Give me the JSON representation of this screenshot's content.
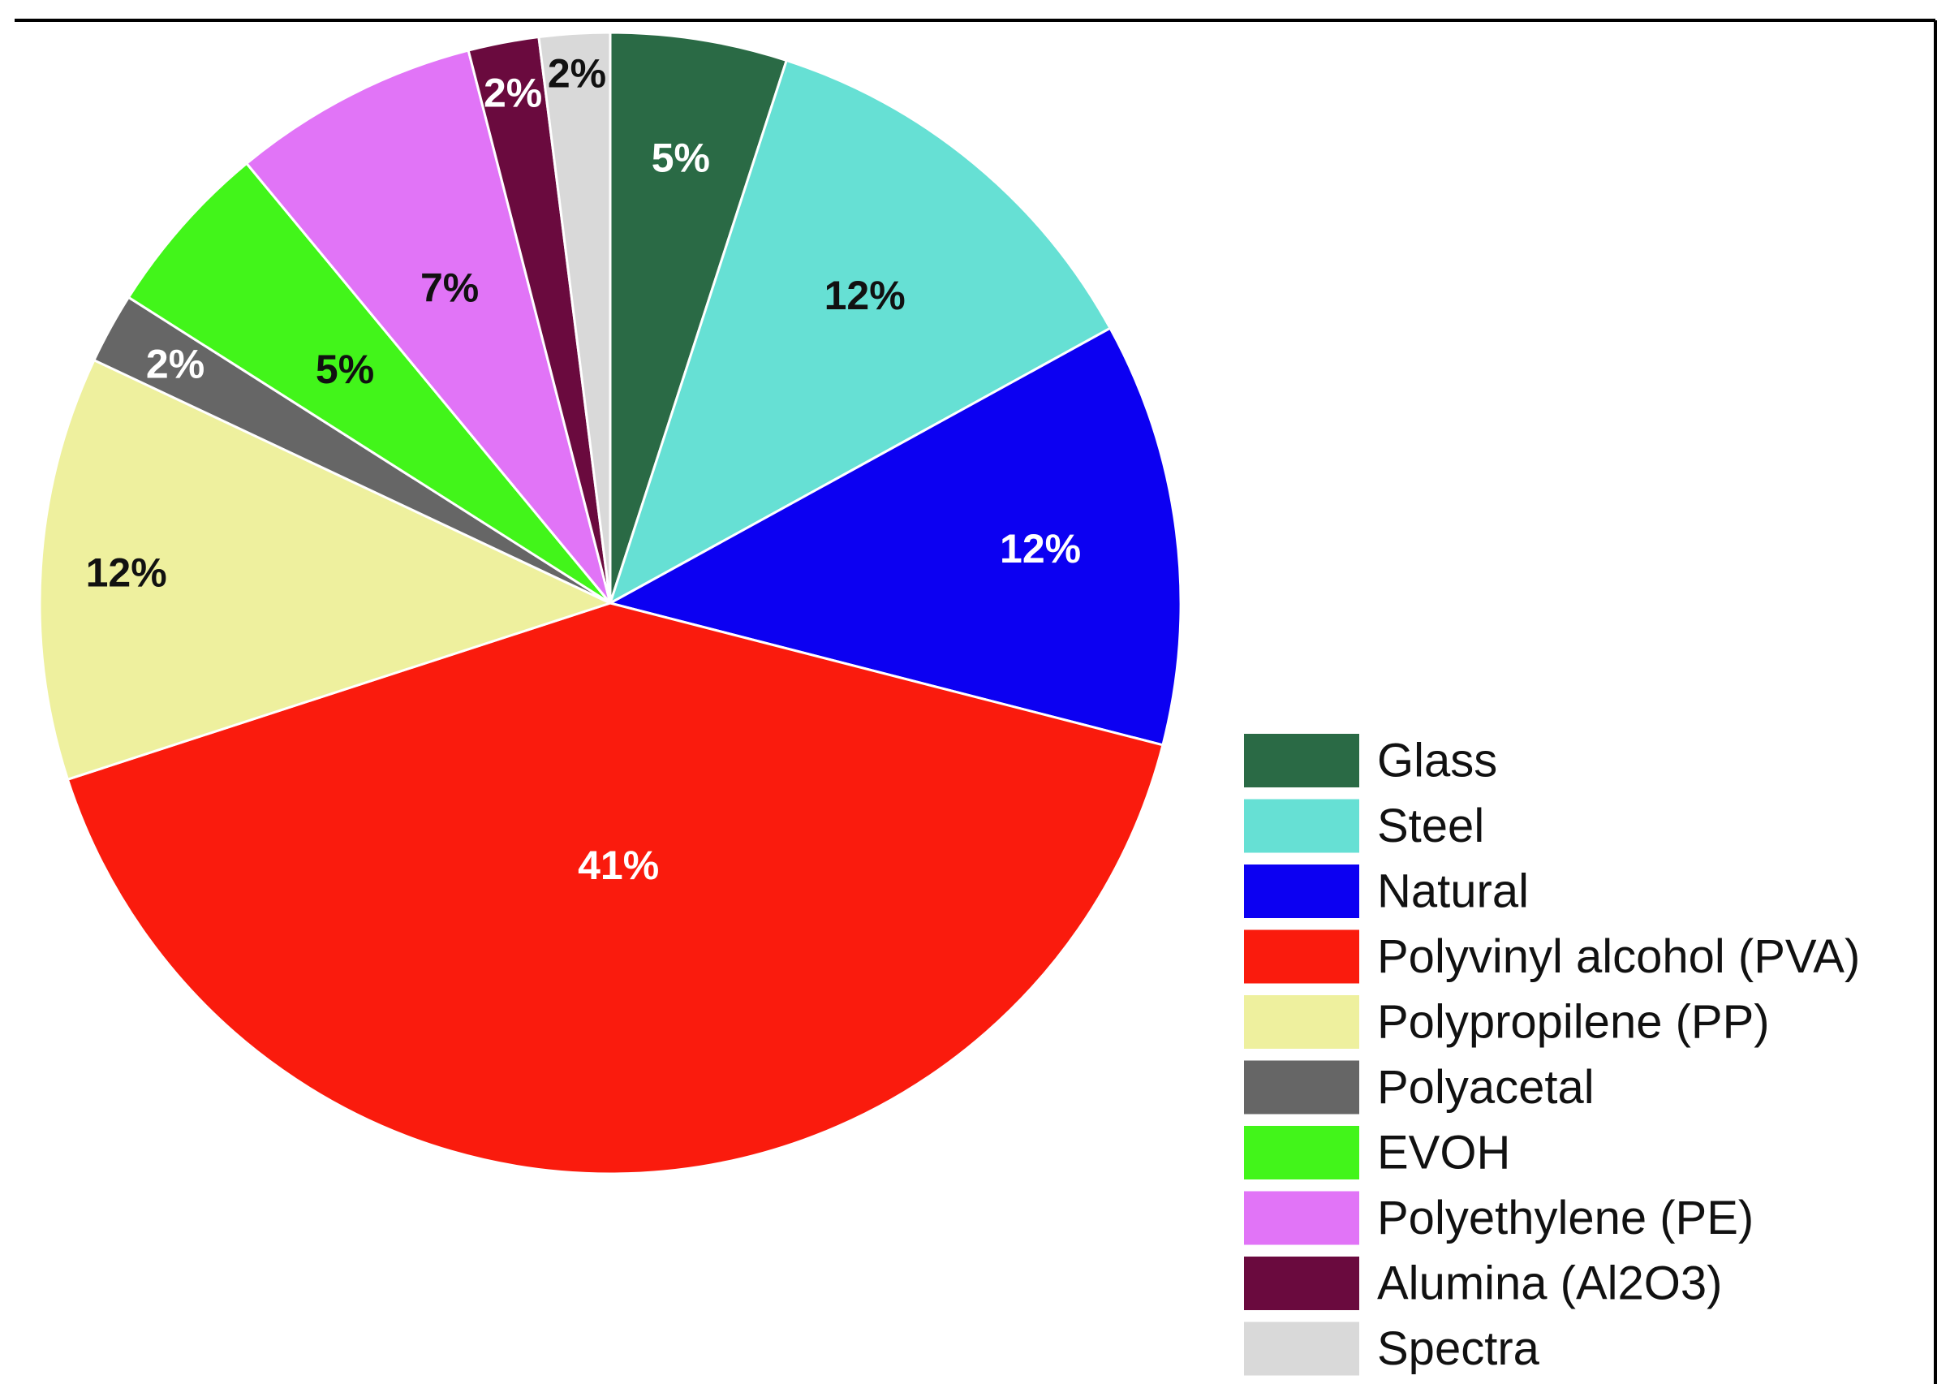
{
  "chart_data": {
    "type": "pie",
    "title": "",
    "legend_position": "bottom-right",
    "slices": [
      {
        "label": "Glass",
        "value": 5,
        "value_label": "5%",
        "color": "#2a6a45",
        "label_color": "#ffffff"
      },
      {
        "label": "Steel",
        "value": 12,
        "value_label": "12%",
        "color": "#66e0d4",
        "label_color": "#111111"
      },
      {
        "label": "Natural",
        "value": 12,
        "value_label": "12%",
        "color": "#0c00f2",
        "label_color": "#ffffff"
      },
      {
        "label": "Polyvinyl alcohol (PVA)",
        "value": 41,
        "value_label": "41%",
        "color": "#fa1b0d",
        "label_color": "#ffffff"
      },
      {
        "label": "Polypropilene (PP)",
        "value": 12,
        "value_label": "12%",
        "color": "#eef09e",
        "label_color": "#111111"
      },
      {
        "label": "Polyacetal",
        "value": 2,
        "value_label": "2%",
        "color": "#666666",
        "label_color": "#ffffff"
      },
      {
        "label": "EVOH",
        "value": 5,
        "value_label": "5%",
        "color": "#42f51a",
        "label_color": "#111111"
      },
      {
        "label": "Polyethylene (PE)",
        "value": 7,
        "value_label": "7%",
        "color": "#e174f7",
        "label_color": "#111111"
      },
      {
        "label": "Alumina (Al2O3)",
        "value": 2,
        "value_label": "2%",
        "color": "#6a0a3e",
        "label_color": "#ffffff"
      },
      {
        "label": "Spectra",
        "value": 2,
        "value_label": "2%",
        "color": "#d9d9d9",
        "label_color": "#111111"
      }
    ]
  }
}
